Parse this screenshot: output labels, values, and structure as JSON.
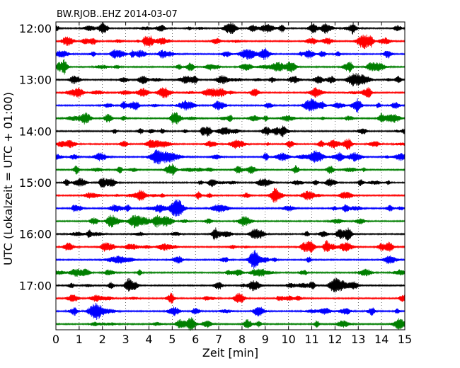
{
  "chart_data": {
    "type": "line",
    "title": "BW.RJOB..EHZ 2014-03-07",
    "xlabel": "Zeit  [min]",
    "ylabel": "UTC (Lokalzeit = UTC + 01:00)",
    "x_ticks": [
      "0",
      "1",
      "2",
      "3",
      "4",
      "5",
      "6",
      "7",
      "8",
      "9",
      "10",
      "11",
      "12",
      "13",
      "14",
      "15"
    ],
    "xlim": [
      0,
      15
    ],
    "y_tick_labels": [
      "12:00",
      "13:00",
      "14:00",
      "15:00",
      "16:00",
      "17:00"
    ],
    "traces_per_hour": 4,
    "trace_count": 24,
    "trace_colors": [
      "#000000",
      "#ff0000",
      "#0000ff",
      "#007f00"
    ],
    "grid": "vertical dotted",
    "legend": "none"
  }
}
